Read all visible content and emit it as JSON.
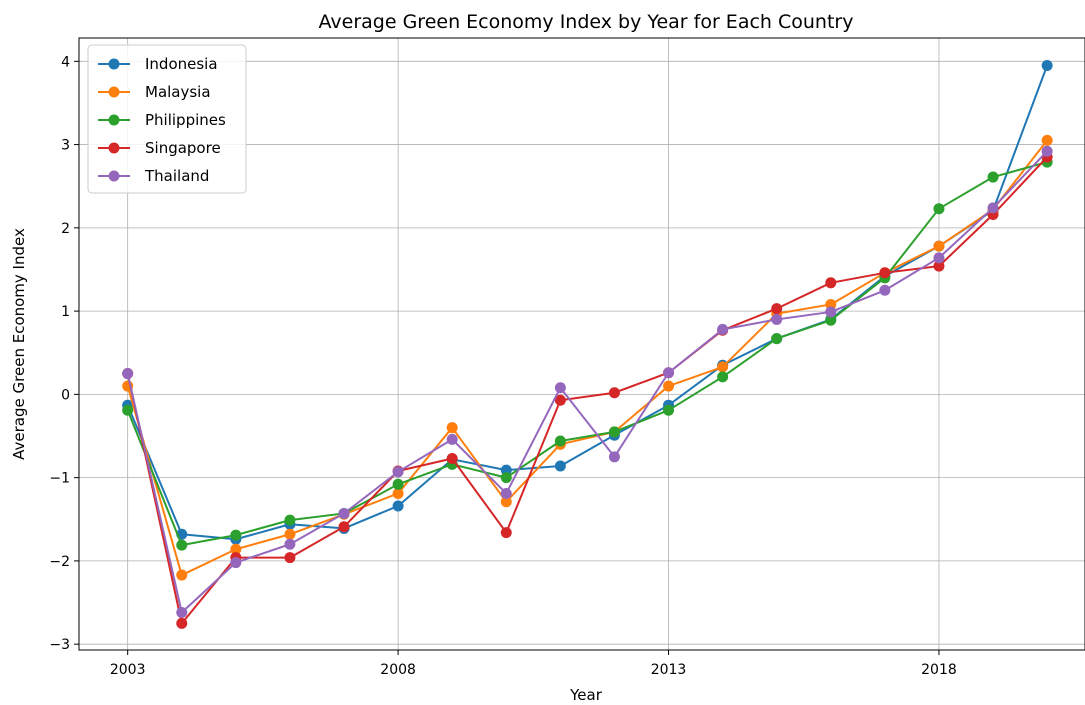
{
  "chart_data": {
    "type": "line",
    "title": "Average Green Economy Index by Year for Each Country",
    "xlabel": "Year",
    "ylabel": "Average Green Economy Index",
    "x": [
      2003,
      2004,
      2005,
      2006,
      2007,
      2008,
      2009,
      2010,
      2011,
      2012,
      2013,
      2014,
      2015,
      2016,
      2017,
      2018,
      2019,
      2020
    ],
    "xticks": [
      2003,
      2008,
      2013,
      2018
    ],
    "yticks": [
      -3,
      -2,
      -1,
      0,
      1,
      2,
      3,
      4
    ],
    "xlim": [
      2002.1,
      2020.7
    ],
    "ylim": [
      -3.07,
      4.28
    ],
    "grid": true,
    "legend_position": "top-left",
    "series": [
      {
        "name": "Indonesia",
        "color": "#1f77b4",
        "values": [
          -0.13,
          -1.68,
          -1.74,
          -1.56,
          -1.61,
          -1.34,
          -0.78,
          -0.91,
          -0.86,
          -0.49,
          -0.13,
          0.35,
          0.67,
          0.9,
          1.42,
          1.78,
          2.21,
          3.95
        ]
      },
      {
        "name": "Malaysia",
        "color": "#ff7f0e",
        "values": [
          0.1,
          -2.17,
          -1.86,
          -1.68,
          -1.44,
          -1.19,
          -0.4,
          -1.29,
          -0.6,
          -0.45,
          0.1,
          0.33,
          0.97,
          1.08,
          1.46,
          1.78,
          2.22,
          3.05
        ]
      },
      {
        "name": "Philippines",
        "color": "#2ca02c",
        "values": [
          -0.19,
          -1.81,
          -1.69,
          -1.51,
          -1.43,
          -1.08,
          -0.84,
          -1.0,
          -0.56,
          -0.45,
          -0.19,
          0.21,
          0.67,
          0.89,
          1.4,
          2.23,
          2.61,
          2.79
        ]
      },
      {
        "name": "Singapore",
        "color": "#d62728",
        "values": [
          0.25,
          -2.75,
          -1.96,
          -1.96,
          -1.59,
          -0.92,
          -0.77,
          -1.66,
          -0.07,
          0.02,
          0.26,
          0.77,
          1.03,
          1.34,
          1.46,
          1.54,
          2.16,
          2.85
        ]
      },
      {
        "name": "Thailand",
        "color": "#9467bd",
        "values": [
          0.25,
          -2.62,
          -2.02,
          -1.8,
          -1.43,
          -0.93,
          -0.54,
          -1.19,
          0.08,
          -0.75,
          0.26,
          0.78,
          0.9,
          0.99,
          1.25,
          1.64,
          2.24,
          2.92
        ]
      }
    ]
  }
}
